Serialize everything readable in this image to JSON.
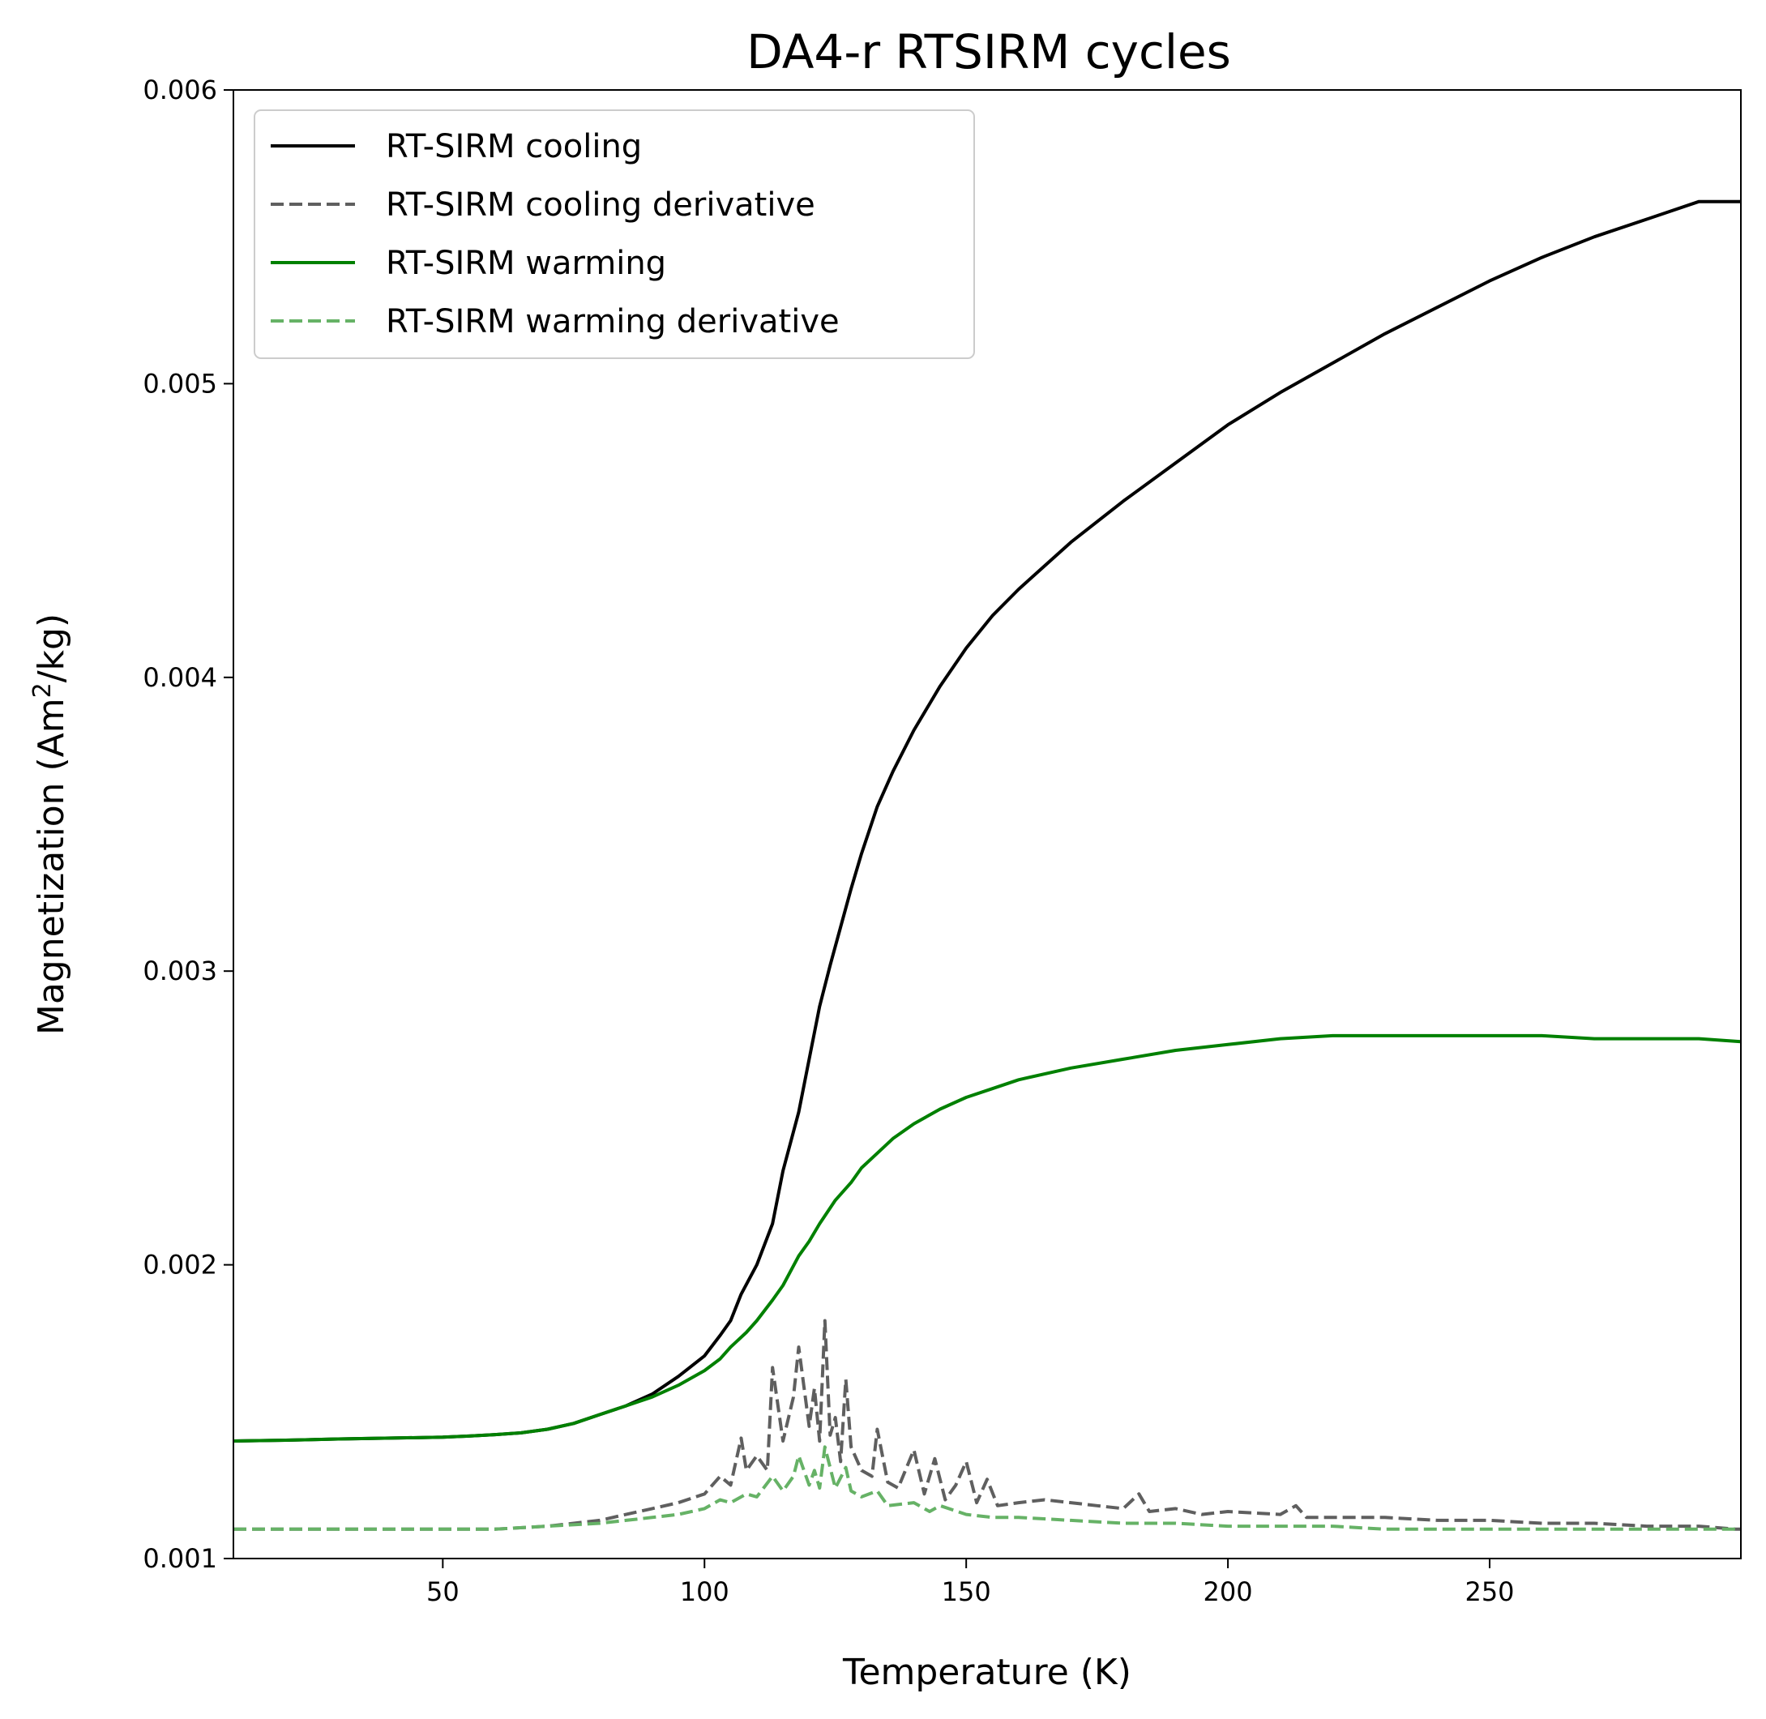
{
  "chart_data": {
    "type": "line",
    "title": "DA4-r RTSIRM cycles",
    "xlabel": "Temperature (K)",
    "ylabel": {
      "main": "Magnetization (Am",
      "sup": "2",
      "tail": "/kg)"
    },
    "xlim": [
      10,
      298
    ],
    "ylim": [
      0.001,
      0.006
    ],
    "xticks": [
      50,
      100,
      150,
      200,
      250
    ],
    "xtick_labels": [
      "50",
      "100",
      "150",
      "200",
      "250"
    ],
    "yticks": [
      0.001,
      0.002,
      0.003,
      0.004,
      0.005,
      0.006
    ],
    "ytick_labels": [
      "0.001",
      "0.002",
      "0.003",
      "0.004",
      "0.005",
      "0.006"
    ],
    "grid": false,
    "legend_position": "top-left",
    "series": [
      {
        "name": "RT-SIRM cooling",
        "color": "#000000",
        "style": "solid",
        "x": [
          10,
          20,
          30,
          40,
          50,
          55,
          60,
          65,
          70,
          75,
          80,
          85,
          90,
          95,
          100,
          103,
          105,
          107,
          110,
          113,
          115,
          118,
          120,
          122,
          124,
          126,
          128,
          130,
          133,
          136,
          140,
          145,
          150,
          155,
          160,
          170,
          180,
          190,
          200,
          210,
          220,
          230,
          240,
          250,
          260,
          270,
          280,
          290,
          298
        ],
        "y": [
          0.0014,
          0.001403,
          0.001407,
          0.00141,
          0.001413,
          0.001417,
          0.001422,
          0.001428,
          0.00144,
          0.00146,
          0.00149,
          0.00152,
          0.00156,
          0.00162,
          0.00169,
          0.00176,
          0.00181,
          0.0019,
          0.002,
          0.00214,
          0.00232,
          0.00252,
          0.0027,
          0.00288,
          0.00302,
          0.00315,
          0.00328,
          0.0034,
          0.00356,
          0.00368,
          0.00382,
          0.00397,
          0.0041,
          0.00421,
          0.0043,
          0.00446,
          0.0046,
          0.00473,
          0.00486,
          0.00497,
          0.00507,
          0.00517,
          0.00526,
          0.00535,
          0.00543,
          0.0055,
          0.00556,
          0.00562,
          0.00562
        ]
      },
      {
        "name": "RT-SIRM cooling derivative",
        "color": "#5f5f5f",
        "style": "dashed",
        "x": [
          10,
          20,
          30,
          40,
          50,
          60,
          70,
          80,
          85,
          90,
          95,
          100,
          103,
          105,
          107,
          108,
          110,
          112,
          113,
          115,
          117,
          118,
          120,
          121,
          122,
          123,
          124,
          125,
          126,
          127,
          128,
          130,
          132,
          133,
          135,
          137,
          140,
          142,
          144,
          146,
          148,
          150,
          152,
          154,
          156,
          160,
          165,
          170,
          175,
          180,
          183,
          185,
          190,
          195,
          200,
          210,
          213,
          215,
          220,
          230,
          240,
          250,
          260,
          270,
          280,
          290,
          297,
          298
        ],
        "y": [
          0.0011,
          0.0011,
          0.0011,
          0.0011,
          0.0011,
          0.0011,
          0.00111,
          0.00113,
          0.00115,
          0.00117,
          0.00119,
          0.00122,
          0.00128,
          0.00125,
          0.00141,
          0.0013,
          0.00135,
          0.0013,
          0.00165,
          0.0014,
          0.00155,
          0.00172,
          0.00145,
          0.00158,
          0.0014,
          0.00181,
          0.00142,
          0.00148,
          0.00133,
          0.00161,
          0.00138,
          0.0013,
          0.00128,
          0.00144,
          0.00126,
          0.00124,
          0.00137,
          0.00122,
          0.00134,
          0.0012,
          0.00125,
          0.00133,
          0.00119,
          0.00127,
          0.00118,
          0.00119,
          0.0012,
          0.00119,
          0.00118,
          0.00117,
          0.00122,
          0.00116,
          0.00117,
          0.00115,
          0.00116,
          0.00115,
          0.00118,
          0.00114,
          0.00114,
          0.00114,
          0.00113,
          0.00113,
          0.00112,
          0.00112,
          0.00111,
          0.00111,
          0.0011,
          0.0011
        ]
      },
      {
        "name": "RT-SIRM warming",
        "color": "#008000",
        "style": "solid",
        "x": [
          10,
          20,
          30,
          40,
          50,
          55,
          60,
          65,
          70,
          75,
          80,
          85,
          90,
          95,
          100,
          103,
          105,
          108,
          110,
          113,
          115,
          118,
          120,
          122,
          125,
          128,
          130,
          133,
          136,
          140,
          145,
          150,
          155,
          160,
          170,
          180,
          190,
          200,
          210,
          220,
          230,
          240,
          250,
          260,
          270,
          280,
          290,
          298
        ],
        "y": [
          0.0014,
          0.001403,
          0.001407,
          0.00141,
          0.001413,
          0.001417,
          0.001422,
          0.001428,
          0.00144,
          0.00146,
          0.00149,
          0.00152,
          0.00155,
          0.00159,
          0.00164,
          0.00168,
          0.00172,
          0.00177,
          0.00181,
          0.00188,
          0.00193,
          0.00203,
          0.00208,
          0.00214,
          0.00222,
          0.00228,
          0.00233,
          0.00238,
          0.00243,
          0.00248,
          0.00253,
          0.00257,
          0.0026,
          0.00263,
          0.00267,
          0.0027,
          0.00273,
          0.00275,
          0.00277,
          0.00278,
          0.00278,
          0.00278,
          0.00278,
          0.00278,
          0.00277,
          0.00277,
          0.00277,
          0.00276
        ]
      },
      {
        "name": "RT-SIRM warming derivative",
        "color": "#66b266",
        "style": "dashed",
        "x": [
          10,
          20,
          30,
          40,
          50,
          60,
          70,
          80,
          85,
          90,
          95,
          100,
          103,
          105,
          108,
          110,
          113,
          115,
          117,
          118,
          120,
          121,
          122,
          123,
          125,
          127,
          128,
          130,
          133,
          135,
          140,
          143,
          145,
          150,
          155,
          160,
          170,
          180,
          190,
          200,
          210,
          220,
          230,
          240,
          250,
          260,
          270,
          280,
          290,
          298
        ],
        "y": [
          0.0011,
          0.0011,
          0.0011,
          0.0011,
          0.0011,
          0.0011,
          0.00111,
          0.00112,
          0.00113,
          0.00114,
          0.00115,
          0.00117,
          0.0012,
          0.00119,
          0.00122,
          0.00121,
          0.00128,
          0.00123,
          0.00128,
          0.00135,
          0.00125,
          0.0013,
          0.00124,
          0.00138,
          0.00124,
          0.00131,
          0.00123,
          0.00121,
          0.00123,
          0.00118,
          0.00119,
          0.00116,
          0.00118,
          0.00115,
          0.00114,
          0.00114,
          0.00113,
          0.00112,
          0.00112,
          0.00111,
          0.00111,
          0.00111,
          0.0011,
          0.0011,
          0.0011,
          0.0011,
          0.0011,
          0.0011,
          0.0011,
          0.0011
        ]
      }
    ]
  }
}
